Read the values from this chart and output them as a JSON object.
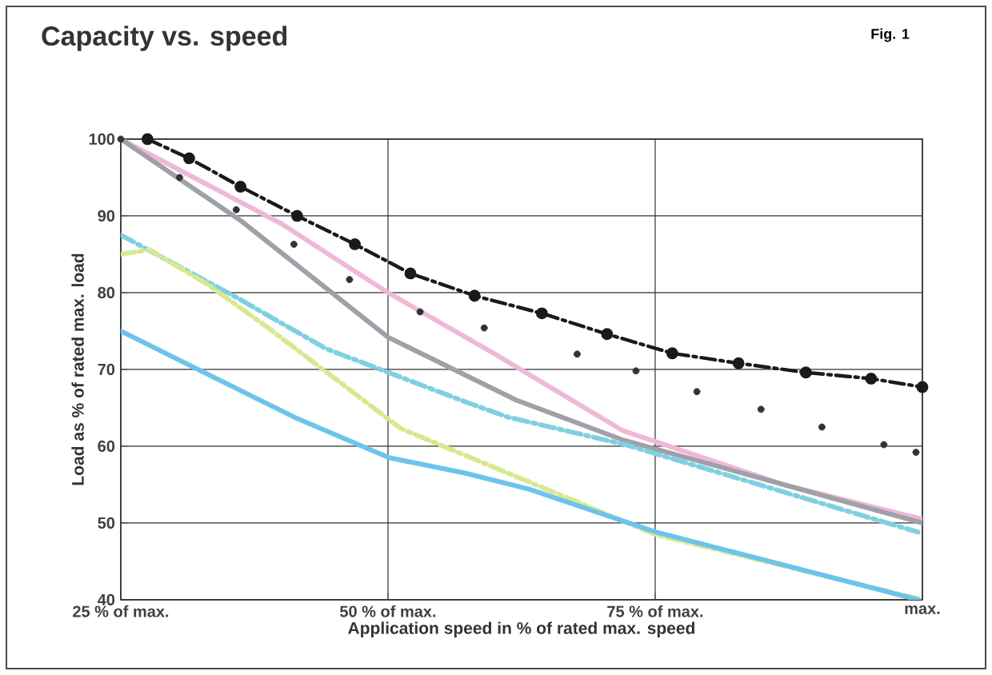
{
  "chart_data": {
    "type": "line",
    "title": "Capacity vs. speed",
    "annotations": [
      "Fig. 1"
    ],
    "xlabel": "Application speed in % of rated max. speed",
    "ylabel": "Load as % of rated max. load",
    "xlim": [
      25,
      100
    ],
    "ylim": [
      40,
      100
    ],
    "xticks": [
      {
        "value": 25,
        "label": "25 % of max."
      },
      {
        "value": 50,
        "label": "50 % of max."
      },
      {
        "value": 75,
        "label": "75 % of max."
      },
      {
        "value": 100,
        "label": "max."
      }
    ],
    "yticks": [
      40,
      50,
      60,
      70,
      80,
      90,
      100
    ],
    "grid": true,
    "series": [
      {
        "color": "#1a1a1a",
        "marker": "circle",
        "line_style": "dashed",
        "x": [
          27.5,
          31.4,
          36.2,
          41.5,
          46.9,
          52.1,
          58.1,
          64.4,
          70.5,
          76.6,
          82.8,
          89.1,
          95.2,
          100
        ],
        "values": [
          100,
          97.5,
          93.8,
          90,
          86.3,
          82.5,
          79.6,
          77.3,
          74.6,
          72.1,
          70.8,
          69.6,
          68.8,
          67.7
        ]
      },
      {
        "type": "scatter",
        "color": "#333333",
        "marker": "circle",
        "x": [
          25,
          30.5,
          35.8,
          41.2,
          46.4,
          53,
          59,
          67.7,
          73.2,
          78.9,
          84.9,
          90.6,
          96.4,
          99.4
        ],
        "values": [
          100,
          95,
          90.8,
          86.3,
          81.7,
          77.5,
          75.4,
          72,
          69.8,
          67.1,
          64.8,
          62.5,
          60.2,
          59.2
        ]
      },
      {
        "color": "#f0b8d8",
        "marker": "none",
        "line_style": "solid",
        "x": [
          25,
          40,
          50,
          60,
          72,
          87,
          100
        ],
        "values": [
          100,
          89,
          80,
          72,
          62,
          55,
          50.5
        ]
      },
      {
        "color": "#a0a0a8",
        "marker": "none",
        "line_style": "solid",
        "x": [
          25,
          36.2,
          50,
          62,
          72,
          87,
          100
        ],
        "values": [
          100,
          89.4,
          74.2,
          66,
          60.8,
          55,
          50
        ]
      },
      {
        "color": "#7fd0e0",
        "marker": "none",
        "line_style": "dashed",
        "x": [
          25,
          35.8,
          44.2,
          57.2,
          61.2,
          72.2,
          99.6
        ],
        "values": [
          87.5,
          79.4,
          72.7,
          65.8,
          63.8,
          60.2,
          48.8
        ]
      },
      {
        "color": "#d8e890",
        "marker": "none",
        "line_style": "dashed",
        "x": [
          25,
          27.7,
          33.2,
          38.8,
          51.2,
          75,
          100
        ],
        "values": [
          85,
          85.6,
          81,
          75.4,
          62.3,
          48.5,
          40
        ]
      },
      {
        "color": "#6cc4ec",
        "marker": "none",
        "line_style": "solid",
        "x": [
          25,
          41.2,
          50.1,
          57.2,
          63.2,
          75.1,
          99.6
        ],
        "values": [
          75,
          63.8,
          58.5,
          56.5,
          54.4,
          48.8,
          40
        ]
      }
    ]
  }
}
